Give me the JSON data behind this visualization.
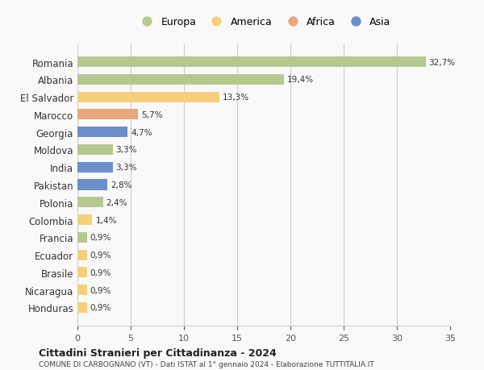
{
  "countries": [
    "Romania",
    "Albania",
    "El Salvador",
    "Marocco",
    "Georgia",
    "Moldova",
    "India",
    "Pakistan",
    "Polonia",
    "Colombia",
    "Francia",
    "Ecuador",
    "Brasile",
    "Nicaragua",
    "Honduras"
  ],
  "values": [
    32.7,
    19.4,
    13.3,
    5.7,
    4.7,
    3.3,
    3.3,
    2.8,
    2.4,
    1.4,
    0.9,
    0.9,
    0.9,
    0.9,
    0.9
  ],
  "labels": [
    "32,7%",
    "19,4%",
    "13,3%",
    "5,7%",
    "4,7%",
    "3,3%",
    "3,3%",
    "2,8%",
    "2,4%",
    "1,4%",
    "0,9%",
    "0,9%",
    "0,9%",
    "0,9%",
    "0,9%"
  ],
  "continents": [
    "Europa",
    "Europa",
    "America",
    "Africa",
    "Asia",
    "Europa",
    "Asia",
    "Asia",
    "Europa",
    "America",
    "Europa",
    "America",
    "America",
    "America",
    "America"
  ],
  "continent_colors": {
    "Europa": "#b5c98e",
    "America": "#f5d07a",
    "Africa": "#e8a87c",
    "Asia": "#6b8fc9"
  },
  "legend_order": [
    "Europa",
    "America",
    "Africa",
    "Asia"
  ],
  "xlim": [
    0,
    35
  ],
  "xticks": [
    0,
    5,
    10,
    15,
    20,
    25,
    30,
    35
  ],
  "title": "Cittadini Stranieri per Cittadinanza - 2024",
  "subtitle": "COMUNE DI CARBOGNANO (VT) - Dati ISTAT al 1° gennaio 2024 - Elaborazione TUTTITALIA.IT",
  "bg_color": "#f9f9f9",
  "grid_color": "#cccccc"
}
